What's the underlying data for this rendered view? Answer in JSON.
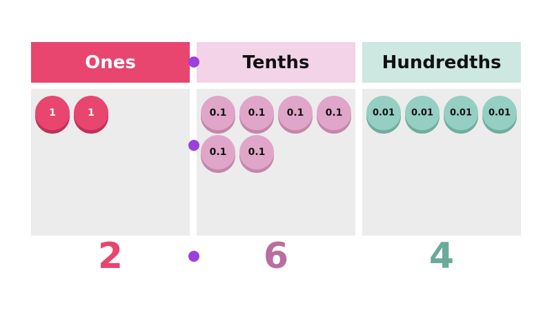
{
  "columns": [
    {
      "header": "Ones",
      "counters": [
        1,
        1
      ],
      "digit": 2
    },
    {
      "header": "Tenths",
      "counters": [
        0.1,
        0.1,
        0.1,
        0.1,
        0.1,
        0.1
      ],
      "digit": 6
    },
    {
      "header": "Hundredths",
      "counters": [
        0.01,
        0.01,
        0.01,
        0.01
      ],
      "digit": 4
    }
  ]
}
